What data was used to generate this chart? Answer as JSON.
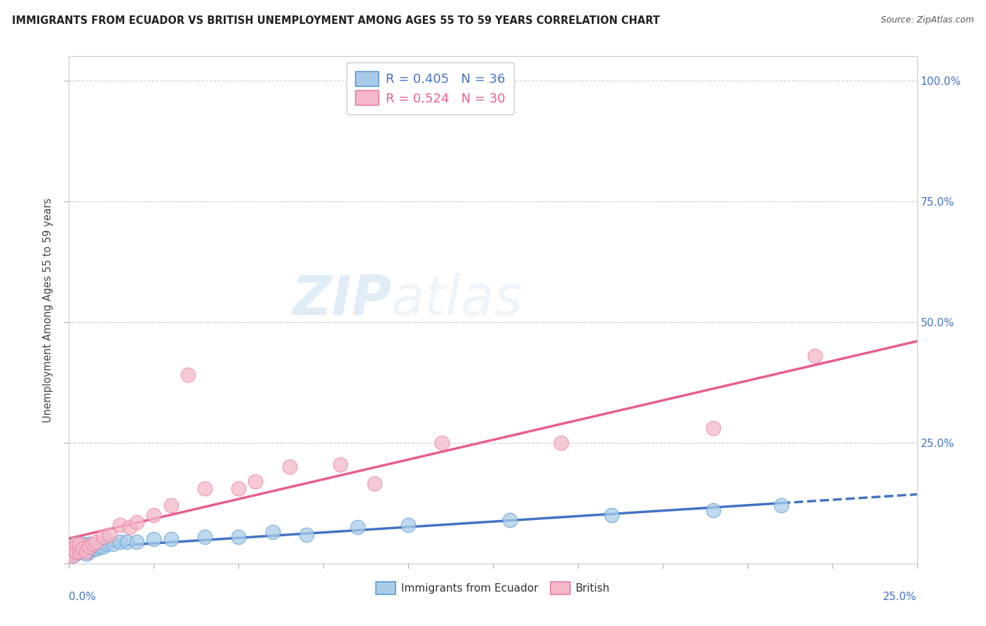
{
  "title": "IMMIGRANTS FROM ECUADOR VS BRITISH UNEMPLOYMENT AMONG AGES 55 TO 59 YEARS CORRELATION CHART",
  "source": "Source: ZipAtlas.com",
  "ylabel": "Unemployment Among Ages 55 to 59 years",
  "legend_entry1": "R = 0.405   N = 36",
  "legend_entry2": "R = 0.524   N = 30",
  "legend_label1": "Immigrants from Ecuador",
  "legend_label2": "British",
  "blue_color": "#a8cce8",
  "pink_color": "#f4b8c8",
  "blue_edge_color": "#5b9bd5",
  "pink_edge_color": "#e87fa0",
  "blue_line_color": "#4472c4",
  "pink_line_color": "#e85d8a",
  "watermark_zip": "ZIP",
  "watermark_atlas": "atlas",
  "xlim": [
    0.0,
    0.25
  ],
  "ylim": [
    0.0,
    1.05
  ],
  "blue_x": [
    0.0005,
    0.001,
    0.001,
    0.001,
    0.002,
    0.002,
    0.002,
    0.003,
    0.003,
    0.004,
    0.004,
    0.005,
    0.005,
    0.006,
    0.006,
    0.007,
    0.008,
    0.009,
    0.01,
    0.011,
    0.013,
    0.015,
    0.017,
    0.02,
    0.025,
    0.03,
    0.04,
    0.06,
    0.085,
    0.1,
    0.13,
    0.16,
    0.19,
    0.21,
    0.05,
    0.07
  ],
  "blue_y": [
    0.02,
    0.015,
    0.025,
    0.03,
    0.02,
    0.03,
    0.04,
    0.025,
    0.035,
    0.025,
    0.04,
    0.02,
    0.035,
    0.025,
    0.04,
    0.03,
    0.03,
    0.035,
    0.035,
    0.04,
    0.04,
    0.045,
    0.045,
    0.045,
    0.05,
    0.05,
    0.055,
    0.065,
    0.075,
    0.08,
    0.09,
    0.1,
    0.11,
    0.12,
    0.055,
    0.06
  ],
  "pink_x": [
    0.0005,
    0.001,
    0.001,
    0.002,
    0.002,
    0.003,
    0.003,
    0.004,
    0.005,
    0.006,
    0.007,
    0.008,
    0.01,
    0.012,
    0.015,
    0.018,
    0.02,
    0.025,
    0.03,
    0.04,
    0.05,
    0.065,
    0.08,
    0.035,
    0.055,
    0.09,
    0.11,
    0.145,
    0.19,
    0.22
  ],
  "pink_y": [
    0.02,
    0.015,
    0.03,
    0.025,
    0.04,
    0.025,
    0.04,
    0.03,
    0.025,
    0.035,
    0.04,
    0.045,
    0.055,
    0.06,
    0.08,
    0.075,
    0.085,
    0.1,
    0.12,
    0.155,
    0.155,
    0.2,
    0.205,
    0.39,
    0.17,
    0.165,
    0.25,
    0.25,
    0.28,
    0.43
  ],
  "xtick_positions": [
    0.0,
    0.025,
    0.05,
    0.075,
    0.1,
    0.125,
    0.15,
    0.175,
    0.2,
    0.225,
    0.25
  ],
  "ytick_positions": [
    0.0,
    0.25,
    0.5,
    0.75,
    1.0
  ]
}
